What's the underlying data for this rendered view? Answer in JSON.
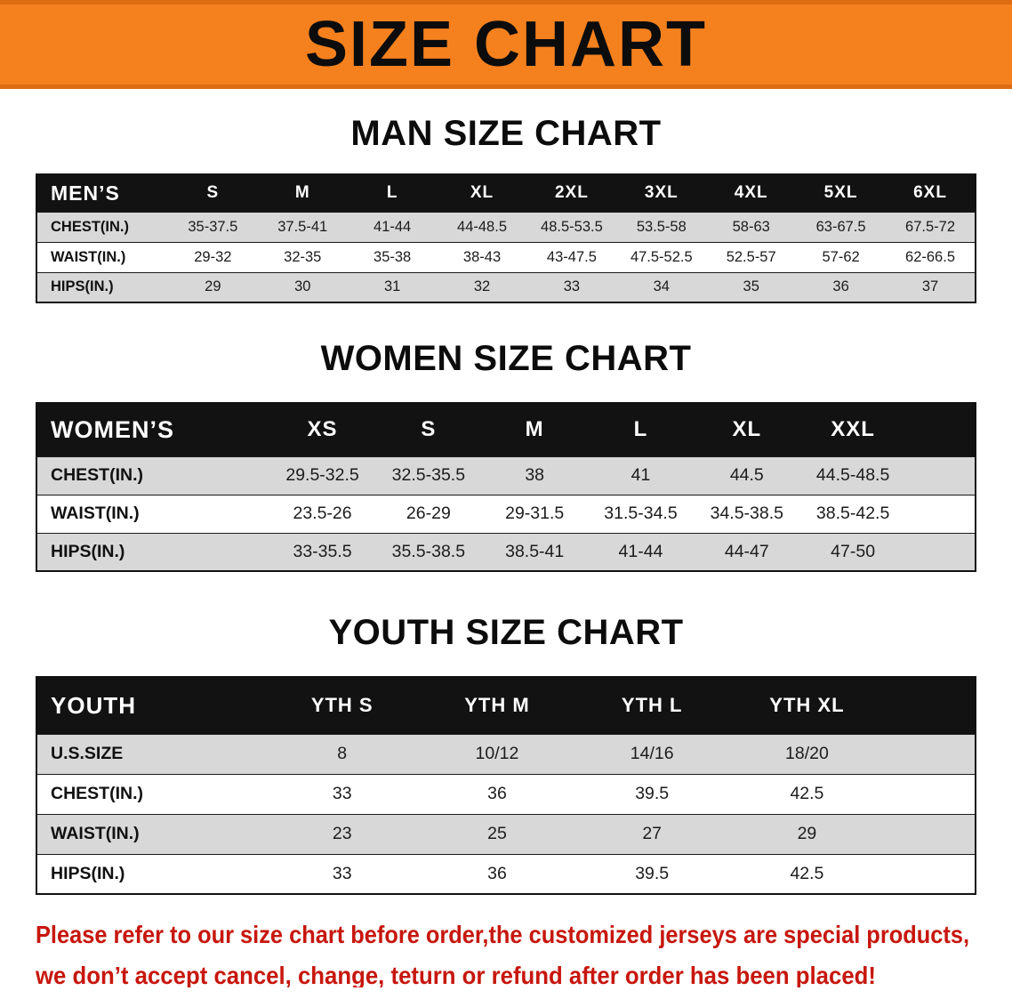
{
  "banner": {
    "title": "SIZE CHART"
  },
  "chart_data": [
    {
      "type": "table",
      "title": "MAN SIZE CHART",
      "corner_label": "MEN’S",
      "columns": [
        "S",
        "M",
        "L",
        "XL",
        "2XL",
        "3XL",
        "4XL",
        "5XL",
        "6XL"
      ],
      "rows": [
        {
          "label": "CHEST(IN.)",
          "values": [
            "35-37.5",
            "37.5-41",
            "41-44",
            "44-48.5",
            "48.5-53.5",
            "53.5-58",
            "58-63",
            "63-67.5",
            "67.5-72"
          ]
        },
        {
          "label": "WAIST(IN.)",
          "values": [
            "29-32",
            "32-35",
            "35-38",
            "38-43",
            "43-47.5",
            "47.5-52.5",
            "52.5-57",
            "57-62",
            "62-66.5"
          ]
        },
        {
          "label": "HIPS(IN.)",
          "values": [
            "29",
            "30",
            "31",
            "32",
            "33",
            "34",
            "35",
            "36",
            "37"
          ]
        }
      ],
      "layout": {
        "label_col_pct": 14,
        "data_col_pct": 9.55,
        "trailing_pct": 0,
        "grid": false,
        "striped": true
      }
    },
    {
      "type": "table",
      "title": "WOMEN SIZE CHART",
      "corner_label": "WOMEN’S",
      "columns": [
        "XS",
        "S",
        "M",
        "L",
        "XL",
        "XXL"
      ],
      "rows": [
        {
          "label": "CHEST(IN.)",
          "values": [
            "29.5-32.5",
            "32.5-35.5",
            "38",
            "41",
            "44.5",
            "44.5-48.5"
          ]
        },
        {
          "label": "WAIST(IN.)",
          "values": [
            "23.5-26",
            "26-29",
            "29-31.5",
            "31.5-34.5",
            "34.5-38.5",
            "38.5-42.5"
          ]
        },
        {
          "label": "HIPS(IN.)",
          "values": [
            "33-35.5",
            "35.5-38.5",
            "38.5-41",
            "41-44",
            "44-47",
            "47-50"
          ]
        }
      ],
      "layout": {
        "label_col_pct": 24.8,
        "data_col_pct": 11.3,
        "trailing_pct": 7.4,
        "grid": false,
        "striped": true
      }
    },
    {
      "type": "table",
      "title": "YOUTH SIZE CHART",
      "corner_label": "YOUTH",
      "columns": [
        "YTH S",
        "YTH M",
        "YTH L",
        "YTH XL"
      ],
      "rows": [
        {
          "label": "U.S.SIZE",
          "values": [
            "8",
            "10/12",
            "14/16",
            "18/20"
          ]
        },
        {
          "label": "CHEST(IN.)",
          "values": [
            "33",
            "36",
            "39.5",
            "42.5"
          ]
        },
        {
          "label": "WAIST(IN.)",
          "values": [
            "23",
            "25",
            "27",
            "29"
          ]
        },
        {
          "label": "HIPS(IN.)",
          "values": [
            "33",
            "36",
            "39.5",
            "42.5"
          ]
        }
      ],
      "layout": {
        "label_col_pct": 24.3,
        "data_col_pct": 16.5,
        "trailing_pct": 9.7,
        "grid": false,
        "striped": true
      }
    }
  ],
  "disclaimer": {
    "lines": [
      "Please refer to our size chart before order,the customized jerseys are special products,",
      "we don’t accept cancel, change, teturn or refund after order has been placed!"
    ]
  },
  "colors": {
    "banner_bg": "#F5811E",
    "banner_edge": "#DD6B12",
    "table_header_bg": "#121212",
    "shaded_row_bg": "#d8d8d8",
    "row_border": "#1a1a1a",
    "disclaimer_text": "#C7170E"
  }
}
